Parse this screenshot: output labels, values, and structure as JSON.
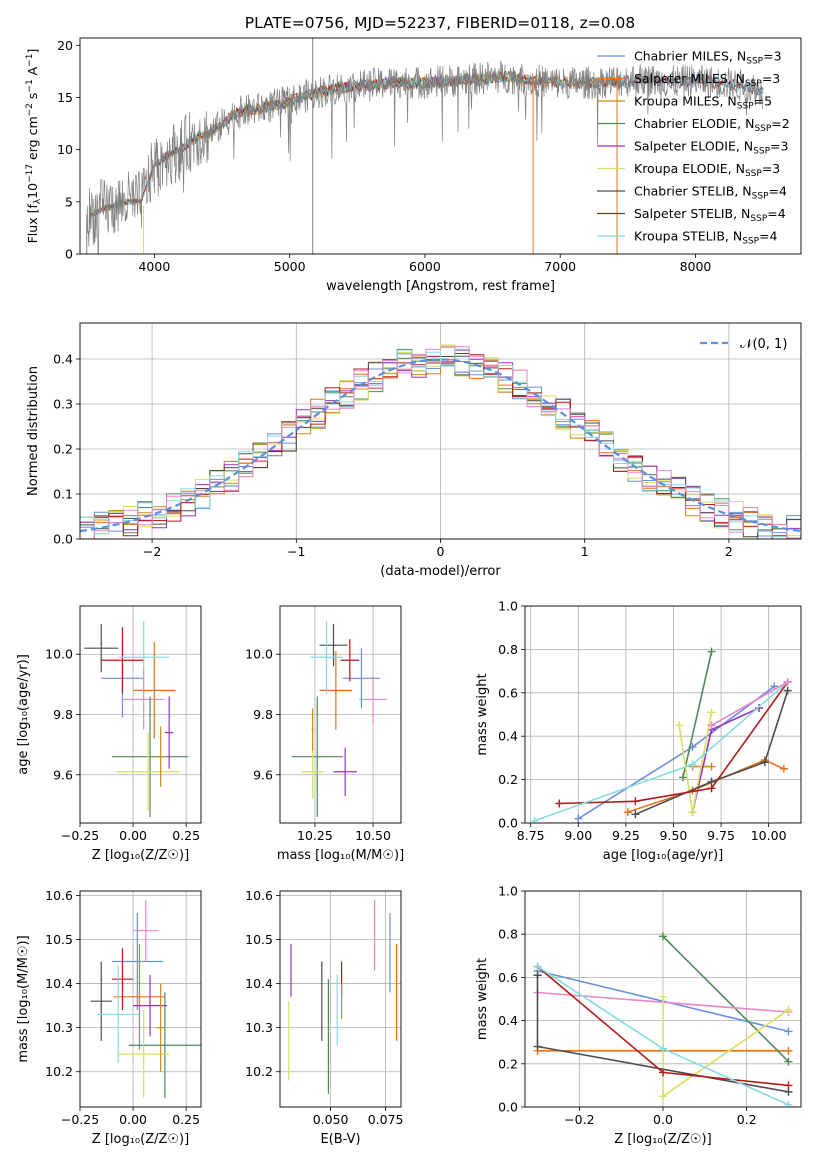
{
  "colors": {
    "chabrier_miles": "#6a8fdb",
    "salpeter_miles": "#e8721c",
    "kroupa_miles": "#cc8a18",
    "chabrier_elodie": "#4f8a5a",
    "salpeter_elodie": "#9933bb",
    "kroupa_elodie": "#d8e060",
    "chabrier_stelib": "#4d4d4d",
    "salpeter_stelib": "#b31b1b",
    "kroupa_stelib": "#86dbe0",
    "pink": "#e987c8",
    "spectrum": "#808080",
    "gaussian": "#5b8fdf"
  },
  "chart_data": [
    {
      "id": "spectrum",
      "type": "line",
      "title": "PLATE=0756, MJD=52237, FIBERID=0118, z=0.08",
      "xlabel": "wavelength [Angstrom, rest frame]",
      "ylabel_parts": [
        "Flux [f",
        "λ",
        "10",
        "−17",
        " erg cm",
        "−2",
        " s",
        "−1",
        " A",
        "−1",
        "]"
      ],
      "xlim": [
        3450,
        8780
      ],
      "ylim": [
        0,
        20.7
      ],
      "xticks": [
        4000,
        5000,
        6000,
        7000,
        8000
      ],
      "xtick_labels": [
        "4000",
        "5000",
        "6000",
        "7000",
        "8000"
      ],
      "yticks": [
        0,
        5,
        10,
        15,
        20
      ],
      "ytick_labels": [
        "0",
        "5",
        "10",
        "15",
        "20"
      ],
      "grid": false,
      "legend_position": "top-right",
      "legend": [
        {
          "label": "Chabrier MILES, N",
          "sub": "SSP",
          "suffix": "=3"
        },
        {
          "label": "Salpeter MILES, N",
          "sub": "SSP",
          "suffix": "=3"
        },
        {
          "label": "Kroupa MILES, N",
          "sub": "SSP",
          "suffix": "=5"
        },
        {
          "label": "Chabrier ELODIE, N",
          "sub": "SSP",
          "suffix": "=2"
        },
        {
          "label": "Salpeter ELODIE, N",
          "sub": "SSP",
          "suffix": "=3"
        },
        {
          "label": "Kroupa ELODIE, N",
          "sub": "SSP",
          "suffix": "=3"
        },
        {
          "label": "Chabrier STELIB, N",
          "sub": "SSP",
          "suffix": "=4"
        },
        {
          "label": "Salpeter STELIB, N",
          "sub": "SSP",
          "suffix": "=4"
        },
        {
          "label": "Kroupa STELIB, N",
          "sub": "SSP",
          "suffix": "=4"
        }
      ],
      "spectrum_nodes": {
        "x": [
          3500,
          3600,
          3700,
          3800,
          3900,
          4000,
          4100,
          4200,
          4300,
          4400,
          4500,
          4600,
          4800,
          5000,
          5200,
          5400,
          5600,
          5800,
          6000,
          6200,
          6400,
          6600,
          6800,
          7000,
          7200,
          7400,
          7600,
          7800,
          8000,
          8200,
          8400,
          8500
        ],
        "y": [
          3.5,
          4.2,
          4.6,
          5.0,
          5.0,
          8.5,
          9.5,
          10.0,
          11.2,
          11.5,
          12.4,
          13.5,
          14.0,
          14.6,
          15.5,
          16.0,
          16.2,
          16.5,
          16.4,
          16.6,
          16.8,
          17.0,
          16.6,
          16.4,
          16.4,
          16.6,
          16.7,
          16.5,
          16.6,
          16.4,
          16.0,
          15.5
        ]
      },
      "spikes": [
        {
          "x": 5170,
          "y0": 0,
          "y1": 20.7,
          "series": "spectrum"
        },
        {
          "x": 6800,
          "y0": 0,
          "y1": 17.0,
          "series": "salpeter_miles"
        },
        {
          "x": 7420,
          "y0": 0,
          "y1": 17.5,
          "series": "salpeter_miles"
        },
        {
          "x": 3500,
          "y0": 0,
          "y1": 3.8,
          "series": "spectrum"
        },
        {
          "x": 3920,
          "y0": 0,
          "y1": 4.6,
          "series": "kroupa_elodie"
        }
      ]
    },
    {
      "id": "residuals",
      "type": "histogram",
      "xlabel": "(data-model)/error",
      "ylabel": "Normed distribution",
      "xlim": [
        -2.5,
        2.5
      ],
      "ylim": [
        0,
        0.48
      ],
      "xticks": [
        -2,
        -1,
        0,
        1,
        2
      ],
      "xtick_labels": [
        "−2",
        "−1",
        "0",
        "1",
        "2"
      ],
      "yticks": [
        0.0,
        0.1,
        0.2,
        0.3,
        0.4
      ],
      "ytick_labels": [
        "0.0",
        "0.1",
        "0.2",
        "0.3",
        "0.4"
      ],
      "grid": true,
      "legend_position": "top-right",
      "legend_label": "𝒩(0, 1)",
      "bin_width": 0.1
    },
    {
      "id": "z_age",
      "type": "errorbar",
      "xlabel": "Z [log₁₀(Z/Z☉)]",
      "ylabel": "age  [log₁₀(age/yr)]",
      "xlim": [
        -0.25,
        0.32
      ],
      "ylim": [
        9.44,
        10.16
      ],
      "xticks": [
        -0.25,
        0.0,
        0.25
      ],
      "xtick_labels": [
        "−0.25",
        "0.00",
        "0.25"
      ],
      "yticks": [
        9.6,
        9.8,
        10.0
      ],
      "ytick_labels": [
        "9.6",
        "9.8",
        "10.0"
      ],
      "grid": true,
      "points": [
        {
          "series": "chabrier_miles",
          "x": -0.05,
          "xerr": 0.1,
          "y": 9.92,
          "yerr": 0.13
        },
        {
          "series": "salpeter_miles",
          "x": 0.1,
          "xerr": 0.1,
          "y": 9.88,
          "yerr": 0.16
        },
        {
          "series": "chabrier_stelib",
          "x": -0.15,
          "xerr": 0.08,
          "y": 10.02,
          "yerr": 0.08
        },
        {
          "series": "salpeter_stelib",
          "x": -0.05,
          "xerr": 0.1,
          "y": 9.98,
          "yerr": 0.11
        },
        {
          "series": "kroupa_stelib",
          "x": 0.05,
          "xerr": 0.12,
          "y": 9.99,
          "yerr": 0.12
        },
        {
          "series": "pink",
          "x": 0.05,
          "xerr": 0.1,
          "y": 9.85,
          "yerr": 0.1
        },
        {
          "series": "chabrier_elodie",
          "x": 0.08,
          "xerr": 0.18,
          "y": 9.66,
          "yerr": 0.2
        },
        {
          "series": "kroupa_elodie",
          "x": 0.07,
          "xerr": 0.15,
          "y": 9.61,
          "yerr": 0.13
        },
        {
          "series": "salpeter_elodie",
          "x": 0.17,
          "xerr": 0.02,
          "y": 9.74,
          "yerr": 0.12
        },
        {
          "series": "kroupa_miles",
          "x": 0.13,
          "xerr": 0.02,
          "y": 9.66,
          "yerr": 0.1
        }
      ]
    },
    {
      "id": "mass_age",
      "type": "errorbar",
      "xlabel": "mass [log₁₀(M/M☉)]",
      "ylabel": "",
      "xlim": [
        10.1,
        10.62
      ],
      "ylim": [
        9.44,
        10.16
      ],
      "xticks": [
        10.25,
        10.5
      ],
      "xtick_labels": [
        "10.25",
        "10.50"
      ],
      "yticks": [
        9.6,
        9.8,
        10.0
      ],
      "ytick_labels": [
        "9.6",
        "9.8",
        "10.0"
      ],
      "grid": true,
      "points": [
        {
          "series": "chabrier_miles",
          "x": 10.45,
          "xerr": 0.08,
          "y": 9.92,
          "yerr": 0.1
        },
        {
          "series": "salpeter_miles",
          "x": 10.34,
          "xerr": 0.07,
          "y": 9.88,
          "yerr": 0.13
        },
        {
          "series": "chabrier_stelib",
          "x": 10.33,
          "xerr": 0.06,
          "y": 10.03,
          "yerr": 0.07
        },
        {
          "series": "salpeter_stelib",
          "x": 10.4,
          "xerr": 0.04,
          "y": 9.98,
          "yerr": 0.07
        },
        {
          "series": "kroupa_stelib",
          "x": 10.3,
          "xerr": 0.07,
          "y": 9.99,
          "yerr": 0.12
        },
        {
          "series": "pink",
          "x": 10.5,
          "xerr": 0.06,
          "y": 9.85,
          "yerr": 0.08
        },
        {
          "series": "chabrier_elodie",
          "x": 10.26,
          "xerr": 0.11,
          "y": 9.66,
          "yerr": 0.2
        },
        {
          "series": "kroupa_elodie",
          "x": 10.24,
          "xerr": 0.05,
          "y": 9.61,
          "yerr": 0.09
        },
        {
          "series": "salpeter_elodie",
          "x": 10.38,
          "xerr": 0.05,
          "y": 9.61,
          "yerr": 0.08
        },
        {
          "series": "kroupa_miles",
          "x": 10.24,
          "xerr": 0.005,
          "y": 9.75,
          "yerr": 0.07
        }
      ]
    },
    {
      "id": "age_weight",
      "type": "line",
      "xlabel": "age  [log₁₀(age/yr)]",
      "ylabel": "mass weight",
      "xlim": [
        8.72,
        10.17
      ],
      "ylim": [
        0.0,
        1.0
      ],
      "xticks": [
        8.75,
        9.0,
        9.25,
        9.5,
        9.75,
        10.0
      ],
      "xtick_labels": [
        "8.75",
        "9.00",
        "9.25",
        "9.50",
        "9.75",
        "10.00"
      ],
      "yticks": [
        0.0,
        0.2,
        0.4,
        0.6,
        0.8,
        1.0
      ],
      "ytick_labels": [
        "0.0",
        "0.2",
        "0.4",
        "0.6",
        "0.8",
        "1.0"
      ],
      "grid": true,
      "series": [
        {
          "series": "chabrier_miles",
          "x": [
            9.0,
            9.6,
            10.03
          ],
          "y": [
            0.02,
            0.35,
            0.63
          ]
        },
        {
          "series": "salpeter_miles",
          "x": [
            9.26,
            9.6,
            9.98,
            10.08
          ],
          "y": [
            0.05,
            0.15,
            0.29,
            0.25
          ]
        },
        {
          "series": "kroupa_miles",
          "x": [
            9.6,
            9.7
          ],
          "y": [
            0.26,
            0.26
          ]
        },
        {
          "series": "chabrier_elodie",
          "x": [
            9.55,
            9.7
          ],
          "y": [
            0.21,
            0.79
          ]
        },
        {
          "series": "salpeter_elodie",
          "x": [
            9.6,
            9.7,
            9.95
          ],
          "y": [
            0.05,
            0.43,
            0.53
          ]
        },
        {
          "series": "kroupa_elodie",
          "x": [
            9.53,
            9.6,
            9.7
          ],
          "y": [
            0.45,
            0.05,
            0.51
          ]
        },
        {
          "series": "chabrier_stelib",
          "x": [
            9.3,
            9.7,
            9.98,
            10.1
          ],
          "y": [
            0.04,
            0.19,
            0.28,
            0.61
          ]
        },
        {
          "series": "salpeter_stelib",
          "x": [
            8.9,
            9.3,
            9.7,
            10.1
          ],
          "y": [
            0.09,
            0.1,
            0.16,
            0.65
          ]
        },
        {
          "series": "kroupa_stelib",
          "x": [
            8.77,
            9.6,
            10.1
          ],
          "y": [
            0.01,
            0.27,
            0.65
          ]
        },
        {
          "series": "pink",
          "x": [
            9.7,
            10.1
          ],
          "y": [
            0.45,
            0.65
          ]
        }
      ]
    },
    {
      "id": "z_mass",
      "type": "errorbar",
      "xlabel": "Z [log₁₀(Z/Z☉)]",
      "ylabel": "mass [log₁₀(M/M☉)]",
      "xlim": [
        -0.25,
        0.32
      ],
      "ylim": [
        10.12,
        10.61
      ],
      "xticks": [
        -0.25,
        0.0,
        0.25
      ],
      "xtick_labels": [
        "−0.25",
        "0.00",
        "0.25"
      ],
      "yticks": [
        10.2,
        10.3,
        10.4,
        10.5,
        10.6
      ],
      "ytick_labels": [
        "10.2",
        "10.3",
        "10.4",
        "10.5",
        "10.6"
      ],
      "grid": true,
      "points": [
        {
          "series": "chabrier_miles",
          "x": 0.02,
          "xerr": 0.12,
          "y": 10.45,
          "yerr": 0.11
        },
        {
          "series": "salpeter_miles",
          "x": 0.03,
          "xerr": 0.12,
          "y": 10.37,
          "yerr": 0.12
        },
        {
          "series": "chabrier_stelib",
          "x": -0.15,
          "xerr": 0.05,
          "y": 10.36,
          "yerr": 0.09
        },
        {
          "series": "salpeter_stelib",
          "x": -0.05,
          "xerr": 0.05,
          "y": 10.41,
          "yerr": 0.07
        },
        {
          "series": "kroupa_stelib",
          "x": -0.07,
          "xerr": 0.1,
          "y": 10.33,
          "yerr": 0.11
        },
        {
          "series": "pink",
          "x": 0.06,
          "xerr": 0.06,
          "y": 10.52,
          "yerr": 0.07
        },
        {
          "series": "chabrier_elodie",
          "x": 0.15,
          "xerr": 0.17,
          "y": 10.26,
          "yerr": 0.12
        },
        {
          "series": "kroupa_elodie",
          "x": 0.05,
          "xerr": 0.12,
          "y": 10.24,
          "yerr": 0.1
        },
        {
          "series": "salpeter_elodie",
          "x": 0.08,
          "xerr": 0.08,
          "y": 10.35,
          "yerr": 0.07
        },
        {
          "series": "kroupa_miles",
          "x": 0.13,
          "xerr": 0.02,
          "y": 10.3,
          "yerr": 0.1
        }
      ]
    },
    {
      "id": "ebv_mass",
      "type": "errorbar",
      "xlabel": "E(B-V)",
      "ylabel": "",
      "xlim": [
        0.027,
        0.082
      ],
      "ylim": [
        10.12,
        10.61
      ],
      "xticks": [
        0.05,
        0.075
      ],
      "xtick_labels": [
        "0.050",
        "0.075"
      ],
      "yticks": [
        10.2,
        10.3,
        10.4,
        10.5,
        10.6
      ],
      "ytick_labels": [
        "10.2",
        "10.3",
        "10.4",
        "10.5",
        "10.6"
      ],
      "grid": true,
      "points": [
        {
          "series": "chabrier_miles",
          "x": 0.077,
          "xerr": 0,
          "y": 10.47,
          "yerr": 0.09
        },
        {
          "series": "salpeter_miles",
          "x": 0.08,
          "xerr": 0,
          "y": 10.38,
          "yerr": 0.11
        },
        {
          "series": "chabrier_stelib",
          "x": 0.046,
          "xerr": 0,
          "y": 10.36,
          "yerr": 0.09
        },
        {
          "series": "salpeter_stelib",
          "x": 0.055,
          "xerr": 0,
          "y": 10.41,
          "yerr": 0.04
        },
        {
          "series": "kroupa_stelib",
          "x": 0.053,
          "xerr": 0,
          "y": 10.34,
          "yerr": 0.08
        },
        {
          "series": "pink",
          "x": 0.07,
          "xerr": 0,
          "y": 10.51,
          "yerr": 0.08
        },
        {
          "series": "chabrier_elodie",
          "x": 0.049,
          "xerr": 0,
          "y": 10.28,
          "yerr": 0.13
        },
        {
          "series": "kroupa_elodie",
          "x": 0.031,
          "xerr": 0,
          "y": 10.27,
          "yerr": 0.09
        },
        {
          "series": "salpeter_elodie",
          "x": 0.032,
          "xerr": 0,
          "y": 10.43,
          "yerr": 0.06
        },
        {
          "series": "kroupa_miles",
          "x": 0.055,
          "xerr": 0,
          "y": 10.36,
          "yerr": 0.04
        }
      ]
    },
    {
      "id": "z_weight",
      "type": "line",
      "xlabel": "Z [log₁₀(Z/Z☉)]",
      "ylabel": "mass weight",
      "xlim": [
        -0.33,
        0.33
      ],
      "ylim": [
        0.0,
        1.0
      ],
      "xticks": [
        -0.2,
        0.0,
        0.2
      ],
      "xtick_labels": [
        "−0.2",
        "0.0",
        "0.2"
      ],
      "yticks": [
        0.0,
        0.2,
        0.4,
        0.6,
        0.8,
        1.0
      ],
      "ytick_labels": [
        "0.0",
        "0.2",
        "0.4",
        "0.6",
        "0.8",
        "1.0"
      ],
      "grid": true,
      "series": [
        {
          "series": "chabrier_miles",
          "x": [
            -0.3,
            0.3
          ],
          "y": [
            0.63,
            0.35
          ]
        },
        {
          "series": "salpeter_miles",
          "x": [
            -0.3,
            0.3
          ],
          "y": [
            0.26,
            0.26
          ]
        },
        {
          "series": "chabrier_elodie",
          "x": [
            0.0,
            0.3
          ],
          "y": [
            0.79,
            0.21
          ]
        },
        {
          "series": "pink",
          "x": [
            -0.3,
            0.3
          ],
          "y": [
            0.53,
            0.44
          ]
        },
        {
          "series": "kroupa_elodie",
          "x": [
            0.0,
            0.0,
            0.3,
            0.0
          ],
          "y": [
            0.51,
            0.05,
            0.45,
            0.05
          ]
        },
        {
          "series": "chabrier_stelib",
          "x": [
            -0.3,
            -0.3,
            0.3
          ],
          "y": [
            0.61,
            0.28,
            0.07
          ]
        },
        {
          "series": "salpeter_stelib",
          "x": [
            -0.3,
            0.0,
            0.3
          ],
          "y": [
            0.65,
            0.16,
            0.1
          ]
        },
        {
          "series": "kroupa_stelib",
          "x": [
            -0.3,
            0.0,
            0.3
          ],
          "y": [
            0.65,
            0.27,
            0.01
          ]
        }
      ]
    }
  ]
}
